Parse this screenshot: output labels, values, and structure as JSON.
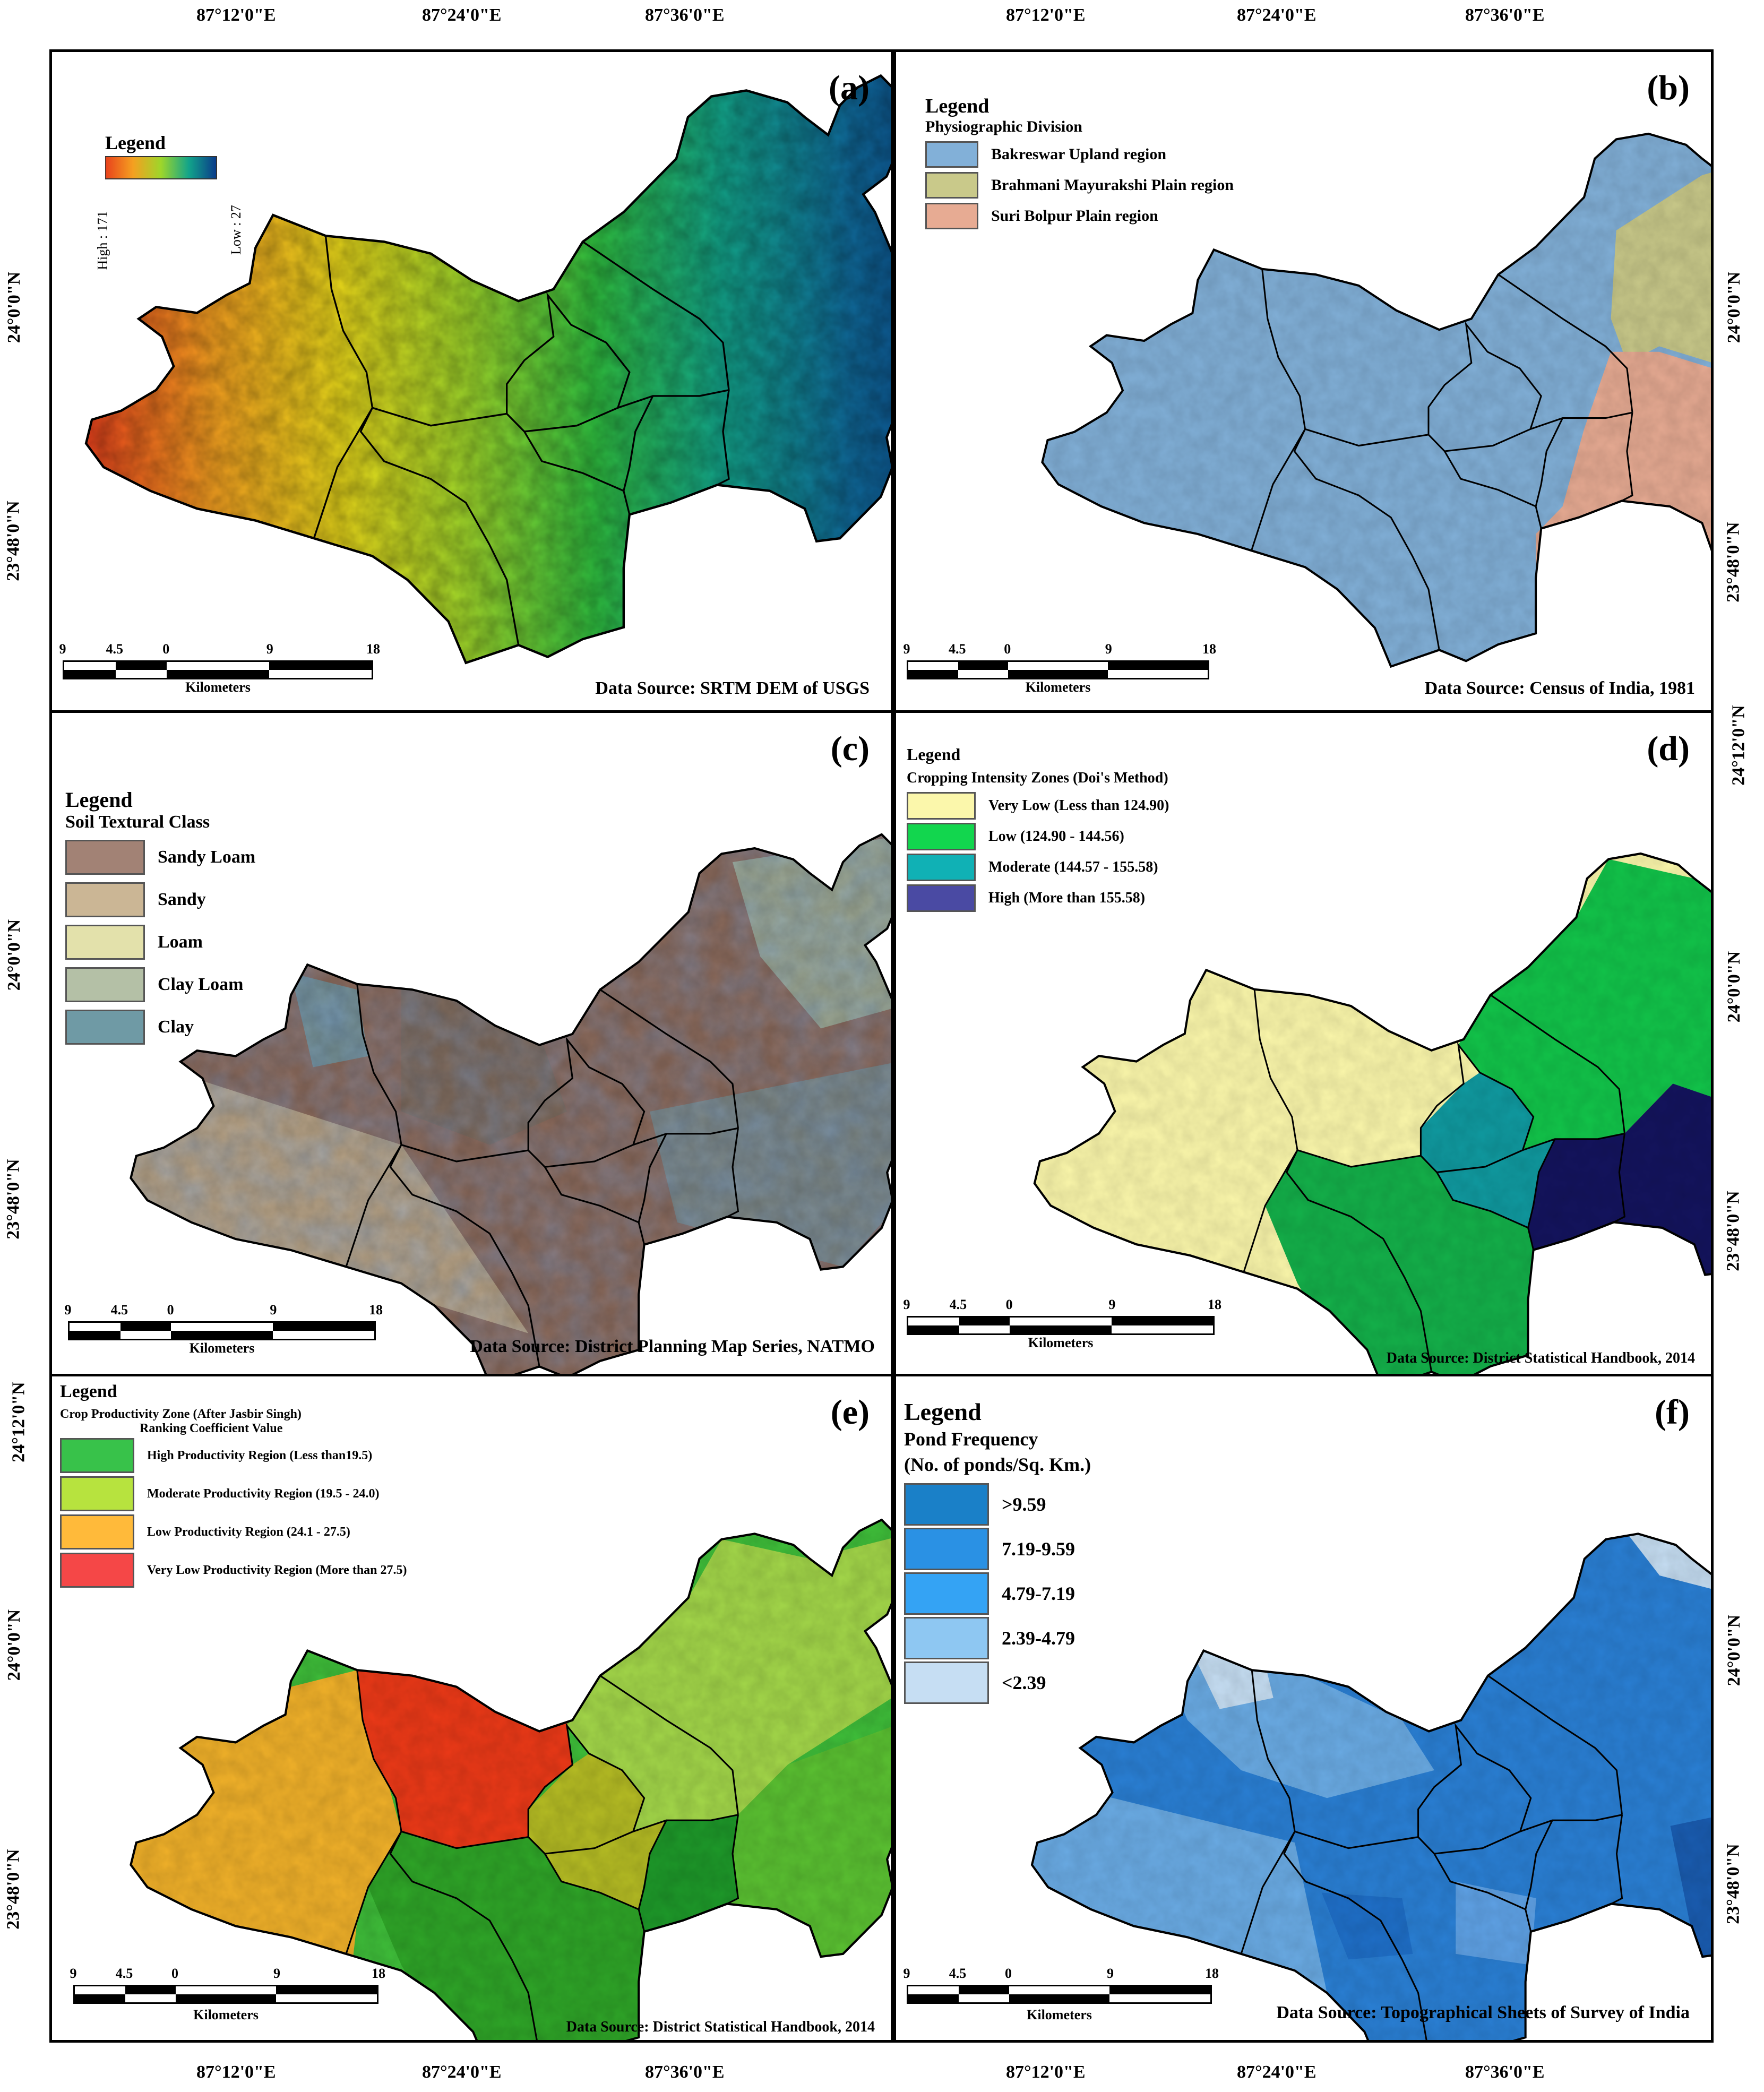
{
  "coords": {
    "top_left": [
      "87°12'0\"E",
      "87°24'0\"E",
      "87°36'0\"E"
    ],
    "top_right": [
      "87°12'0\"E",
      "87°24'0\"E",
      "87°36'0\"E"
    ],
    "bottom_left": [
      "87°12'0\"E",
      "87°24'0\"E",
      "87°36'0\"E"
    ],
    "bottom_right": [
      "87°12'0\"E",
      "87°24'0\"E",
      "87°36'0\"E"
    ],
    "left_top": [
      "24°0'0\"N",
      "23°48'0\"N"
    ],
    "left_mid": [
      "24°0'0\"N",
      "23°48'0\"N"
    ],
    "left_bot": [
      "24°12'0\"N",
      "24°0'0\"N",
      "23°48'0\"N"
    ],
    "right_top": [
      "24°0'0\"N",
      "23°48'0\"N",
      "24°12'0\"N"
    ],
    "right_mid": [
      "24°0'0\"N",
      "23°48'0\"N"
    ],
    "right_bot": [
      "24°0'0\"N",
      "23°48'0\"N"
    ]
  },
  "scalebar": {
    "ticks": [
      "9",
      "4.5",
      "0",
      "9",
      "18"
    ],
    "unit": "Kilometers"
  },
  "panels": {
    "a": {
      "label": "(a)",
      "legend_title": "Legend",
      "high": "High : 171",
      "low": "Low : 27",
      "source": "Data Source: SRTM DEM of USGS"
    },
    "b": {
      "label": "(b)",
      "legend_title": "Legend",
      "legend_sub": "Physiographic Division",
      "items": [
        {
          "label": "Bakreswar Upland region",
          "color": "#82b0d8"
        },
        {
          "label": "Brahmani Mayurakshi Plain region",
          "color": "#c9c98a"
        },
        {
          "label": "Suri Bolpur Plain region",
          "color": "#e7ab93"
        }
      ],
      "source": "Data Source: Census of India, 1981"
    },
    "c": {
      "label": "(c)",
      "legend_title": "Legend",
      "legend_sub": "Soil Textural Class",
      "items": [
        {
          "label": "Sandy Loam",
          "color": "#a28275"
        },
        {
          "label": "Sandy",
          "color": "#cbb695"
        },
        {
          "label": "Loam",
          "color": "#e3e1ab"
        },
        {
          "label": "Clay Loam",
          "color": "#b4c0a6"
        },
        {
          "label": "Clay",
          "color": "#6f9aa5"
        }
      ],
      "source": "Data Source: District Planning Map Series, NATMO"
    },
    "d": {
      "label": "(d)",
      "legend_title": "Legend",
      "legend_sub": "Cropping Intensity Zones (Doi's Method)",
      "items": [
        {
          "label": "Very Low (Less than 124.90)",
          "color": "#fbf7ab"
        },
        {
          "label": "Low (124.90 - 144.56)",
          "color": "#12d64e"
        },
        {
          "label": "Moderate (144.57 - 155.58)",
          "color": "#10b1b5"
        },
        {
          "label": "High (More than 155.58)",
          "color": "#4a4aa3"
        }
      ],
      "source": "Data Source: District Statistical Handbook, 2014"
    },
    "e": {
      "label": "(e)",
      "legend_title": "Legend",
      "legend_sub": "Crop Productivity Zone (After Jasbir Singh)",
      "legend_sub2": "Ranking Coefficient Value",
      "items": [
        {
          "label": "High Productivity Region (Less than19.5)",
          "color": "#38c24a"
        },
        {
          "label": "Moderate Productivity Region (19.5 - 24.0)",
          "color": "#b7e33e"
        },
        {
          "label": "Low Productivity Region (24.1 - 27.5)",
          "color": "#ffba3a"
        },
        {
          "label": "Very Low Productivity Region (More than 27.5)",
          "color": "#f54747"
        }
      ],
      "source": "Data Source: District Statistical Handbook, 2014"
    },
    "f": {
      "label": "(f)",
      "legend_title": "Legend",
      "legend_sub": "Pond Frequency",
      "legend_sub2": "(No. of ponds/Sq. Km.)",
      "items": [
        {
          "label": ">9.59",
          "color": "#1a80c8"
        },
        {
          "label": "7.19-9.59",
          "color": "#2a91e4"
        },
        {
          "label": "4.79-7.19",
          "color": "#34a3f4"
        },
        {
          "label": "2.39-4.79",
          "color": "#8ec7f2"
        },
        {
          "label": "<2.39",
          "color": "#c6def3"
        }
      ],
      "source": "Data Source: Topographical Sheets of Survey of India"
    }
  }
}
